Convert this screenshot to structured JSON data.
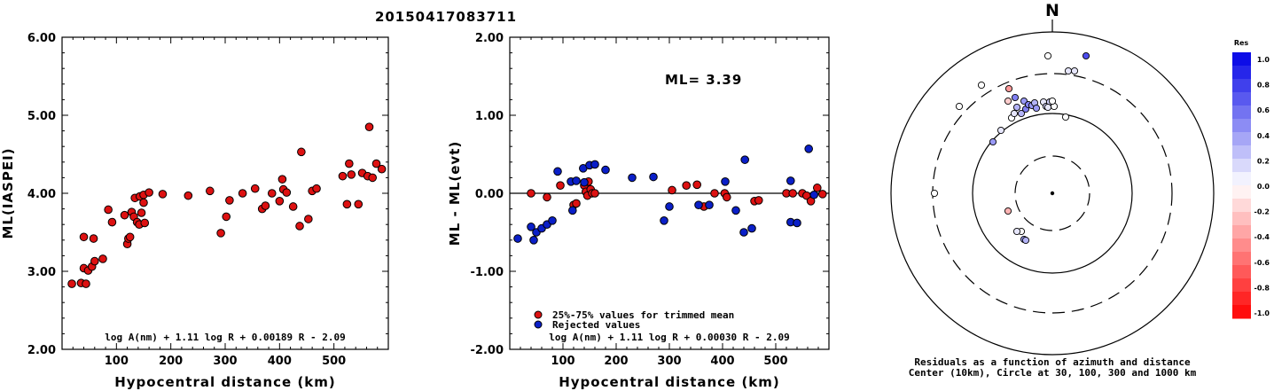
{
  "title": "20150417083711",
  "colors": {
    "relative": "#dd1111",
    "rejected": "#0a1fc8"
  },
  "chart_data": [
    {
      "type": "scatter",
      "xlabel": "Hypocentral distance (km)",
      "ylabel": "ML(IASPEI)",
      "xlim": [
        0,
        600
      ],
      "ylim": [
        2.0,
        6.0
      ],
      "xticks": [
        100,
        200,
        300,
        400,
        500
      ],
      "yticks": [
        2.0,
        3.0,
        4.0,
        5.0,
        6.0
      ],
      "ytick_labels": [
        "2.00",
        "3.00",
        "4.00",
        "5.00",
        "6.00"
      ],
      "formula": "log A(nm) + 1.11 log R + 0.00189 R - 2.09",
      "points": [
        [
          18,
          2.84
        ],
        [
          35,
          2.85
        ],
        [
          40,
          3.44
        ],
        [
          40,
          3.04
        ],
        [
          44,
          2.84
        ],
        [
          48,
          3.01
        ],
        [
          55,
          3.06
        ],
        [
          58,
          3.42
        ],
        [
          60,
          3.13
        ],
        [
          75,
          3.16
        ],
        [
          85,
          3.79
        ],
        [
          92,
          3.63
        ],
        [
          115,
          3.72
        ],
        [
          120,
          3.35
        ],
        [
          122,
          3.42
        ],
        [
          125,
          3.44
        ],
        [
          128,
          3.76
        ],
        [
          132,
          3.7
        ],
        [
          134,
          3.94
        ],
        [
          138,
          3.63
        ],
        [
          142,
          3.6
        ],
        [
          143,
          3.96
        ],
        [
          146,
          3.75
        ],
        [
          150,
          3.88
        ],
        [
          150,
          3.98
        ],
        [
          152,
          3.62
        ],
        [
          160,
          4.01
        ],
        [
          185,
          3.99
        ],
        [
          232,
          3.97
        ],
        [
          272,
          4.03
        ],
        [
          292,
          3.49
        ],
        [
          302,
          3.7
        ],
        [
          308,
          3.91
        ],
        [
          332,
          4.0
        ],
        [
          355,
          4.06
        ],
        [
          368,
          3.8
        ],
        [
          374,
          3.84
        ],
        [
          386,
          4.0
        ],
        [
          400,
          3.9
        ],
        [
          405,
          4.18
        ],
        [
          407,
          4.05
        ],
        [
          413,
          4.01
        ],
        [
          425,
          3.83
        ],
        [
          437,
          3.58
        ],
        [
          440,
          4.53
        ],
        [
          453,
          3.67
        ],
        [
          460,
          4.03
        ],
        [
          468,
          4.06
        ],
        [
          516,
          4.22
        ],
        [
          524,
          3.86
        ],
        [
          528,
          4.38
        ],
        [
          532,
          4.24
        ],
        [
          545,
          3.86
        ],
        [
          552,
          4.26
        ],
        [
          562,
          4.22
        ],
        [
          565,
          4.85
        ],
        [
          571,
          4.2
        ],
        [
          578,
          4.38
        ],
        [
          588,
          4.31
        ]
      ]
    },
    {
      "type": "scatter",
      "xlabel": "Hypocentral distance (km)",
      "ylabel": "ML - ML(evt)",
      "xlim": [
        0,
        600
      ],
      "ylim": [
        -2.0,
        2.0
      ],
      "xticks": [
        100,
        200,
        300,
        400,
        500
      ],
      "yticks": [
        -2.0,
        -1.0,
        0.0,
        1.0,
        2.0
      ],
      "ytick_labels": [
        "-2.00",
        "-1.00",
        "0.00",
        "1.00",
        "2.00"
      ],
      "annotation": "ML= 3.39",
      "legend": [
        "25%-75% values for trimmed mean",
        "Rejected values"
      ],
      "formula": "log A(nm) + 1.11 log R + 0.00030 R - 2.09",
      "series": [
        {
          "name": "25%-75% values for trimmed mean",
          "points": [
            [
              40,
              0.0
            ],
            [
              70,
              -0.05
            ],
            [
              95,
              0.1
            ],
            [
              120,
              -0.15
            ],
            [
              125,
              -0.13
            ],
            [
              140,
              0.1
            ],
            [
              143,
              0.02
            ],
            [
              146,
              -0.03
            ],
            [
              148,
              0.15
            ],
            [
              152,
              0.05
            ],
            [
              155,
              0.0
            ],
            [
              160,
              0.0
            ],
            [
              305,
              0.04
            ],
            [
              332,
              0.1
            ],
            [
              352,
              0.11
            ],
            [
              365,
              -0.17
            ],
            [
              385,
              0.0
            ],
            [
              404,
              0.0
            ],
            [
              408,
              -0.05
            ],
            [
              460,
              -0.1
            ],
            [
              468,
              -0.09
            ],
            [
              520,
              0.0
            ],
            [
              532,
              0.0
            ],
            [
              550,
              0.0
            ],
            [
              558,
              -0.03
            ],
            [
              566,
              -0.1
            ],
            [
              578,
              0.07
            ],
            [
              588,
              -0.01
            ]
          ]
        },
        {
          "name": "Rejected values",
          "points": [
            [
              15,
              -0.58
            ],
            [
              40,
              -0.43
            ],
            [
              45,
              -0.6
            ],
            [
              50,
              -0.5
            ],
            [
              60,
              -0.45
            ],
            [
              70,
              -0.4
            ],
            [
              80,
              -0.35
            ],
            [
              90,
              0.28
            ],
            [
              115,
              0.15
            ],
            [
              118,
              -0.22
            ],
            [
              125,
              0.16
            ],
            [
              138,
              0.32
            ],
            [
              140,
              0.14
            ],
            [
              150,
              0.36
            ],
            [
              160,
              0.37
            ],
            [
              180,
              0.3
            ],
            [
              230,
              0.2
            ],
            [
              270,
              0.21
            ],
            [
              290,
              -0.35
            ],
            [
              300,
              -0.17
            ],
            [
              355,
              -0.15
            ],
            [
              375,
              -0.15
            ],
            [
              405,
              0.15
            ],
            [
              425,
              -0.22
            ],
            [
              440,
              -0.5
            ],
            [
              442,
              0.43
            ],
            [
              455,
              -0.45
            ],
            [
              528,
              0.16
            ],
            [
              528,
              -0.37
            ],
            [
              540,
              -0.38
            ],
            [
              562,
              0.57
            ],
            [
              572,
              -0.02
            ]
          ]
        }
      ]
    },
    {
      "type": "scatter",
      "subtype": "polar",
      "north_label": "N",
      "caption_line1": "Residuals as a function of azimuth and distance",
      "caption_line2": "Center (10km), Circle at 30, 100, 300 and 1000 km",
      "colorbar_title": "Res",
      "colorbar_ticks": [
        "1.0",
        "0.8",
        "0.6",
        "0.4",
        "0.2",
        "0.0",
        "-0.2",
        "-0.4",
        "-0.6",
        "-0.8",
        "-1.0"
      ],
      "circles_km": [
        30,
        100,
        300,
        1000
      ],
      "points_offset_res": [
        [
          -50,
          -104,
          -0.2
        ],
        [
          -49,
          -118,
          -0.4
        ],
        [
          -46,
          -85,
          0.0
        ],
        [
          -43,
          -90,
          0.1
        ],
        [
          -35,
          -90,
          0.3
        ],
        [
          -32,
          -104,
          0.4
        ],
        [
          -42,
          -108,
          0.5
        ],
        [
          -40,
          -97,
          0.3
        ],
        [
          -30,
          -95,
          0.5
        ],
        [
          -27,
          -100,
          0.5
        ],
        [
          -23,
          -99,
          0.4
        ],
        [
          -20,
          -102,
          0.3
        ],
        [
          -18,
          -96,
          0.4
        ],
        [
          -10,
          -103,
          0.1
        ],
        [
          -7,
          -98,
          0.2
        ],
        [
          -3,
          -103,
          0.2
        ],
        [
          -5,
          -97,
          0.1
        ],
        [
          2,
          -98,
          0.0
        ],
        [
          0,
          -104,
          0.0
        ],
        [
          15,
          -86,
          0.0
        ],
        [
          -5,
          -155,
          0.0
        ],
        [
          18,
          -138,
          0.1
        ],
        [
          25,
          -138,
          0.1
        ],
        [
          38,
          -155,
          0.7
        ],
        [
          -80,
          -122,
          0.0
        ],
        [
          -105,
          -98,
          0.0
        ],
        [
          -58,
          -71,
          0.1
        ],
        [
          -67,
          -58,
          0.4
        ],
        [
          -133,
          0.0,
          0.0
        ],
        [
          -50,
          20,
          -0.3
        ],
        [
          -35,
          43,
          0.0
        ],
        [
          -32,
          52,
          0.4
        ],
        [
          -40,
          43,
          0.1
        ],
        [
          -30,
          53,
          0.3
        ]
      ]
    }
  ]
}
